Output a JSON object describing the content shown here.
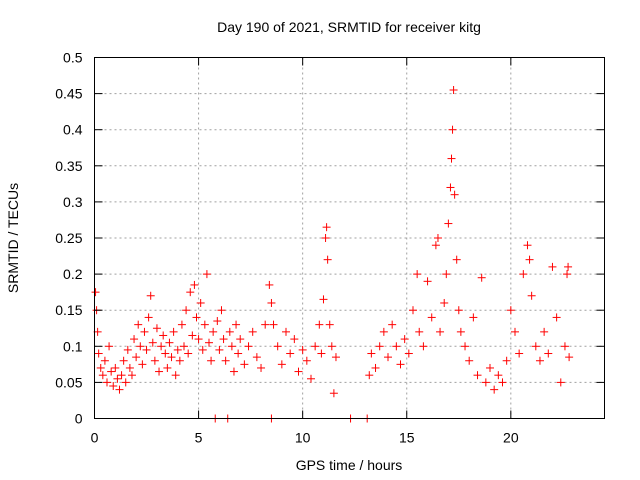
{
  "chart_data": {
    "type": "scatter",
    "title": "Day 190 of 2021, SRMTID for receiver kitg",
    "xlabel": "GPS time / hours",
    "ylabel": "SRMTID / TECUs",
    "xlim": [
      0,
      24.5
    ],
    "ylim": [
      0,
      0.5
    ],
    "x_ticks": [
      0,
      5,
      10,
      15,
      20
    ],
    "x_tick_labels": [
      "0",
      "5",
      "10",
      "15",
      "20"
    ],
    "y_ticks": [
      0,
      0.05,
      0.1,
      0.15,
      0.2,
      0.25,
      0.3,
      0.35,
      0.4,
      0.45,
      0.5
    ],
    "y_tick_labels": [
      "0",
      "0.05",
      "0.1",
      "0.15",
      "0.2",
      "0.25",
      "0.3",
      "0.35",
      "0.4",
      "0.45",
      "0.5"
    ],
    "grid": true,
    "marker": "+",
    "color": "#ff0000",
    "series": [
      {
        "name": "SRMTID",
        "points": [
          [
            0.05,
            0.175
          ],
          [
            0.1,
            0.15
          ],
          [
            0.15,
            0.12
          ],
          [
            0.2,
            0.09
          ],
          [
            0.3,
            0.07
          ],
          [
            0.4,
            0.06
          ],
          [
            0.5,
            0.08
          ],
          [
            0.6,
            0.05
          ],
          [
            0.7,
            0.1
          ],
          [
            0.8,
            0.065
          ],
          [
            0.9,
            0.045
          ],
          [
            1.0,
            0.07
          ],
          [
            1.1,
            0.055
          ],
          [
            1.2,
            0.04
          ],
          [
            1.3,
            0.06
          ],
          [
            1.4,
            0.08
          ],
          [
            1.5,
            0.05
          ],
          [
            1.6,
            0.095
          ],
          [
            1.7,
            0.07
          ],
          [
            1.8,
            0.06
          ],
          [
            1.9,
            0.11
          ],
          [
            2.0,
            0.085
          ],
          [
            2.1,
            0.13
          ],
          [
            2.2,
            0.1
          ],
          [
            2.3,
            0.075
          ],
          [
            2.4,
            0.12
          ],
          [
            2.5,
            0.095
          ],
          [
            2.6,
            0.14
          ],
          [
            2.7,
            0.17
          ],
          [
            2.8,
            0.105
          ],
          [
            2.9,
            0.08
          ],
          [
            3.0,
            0.125
          ],
          [
            3.1,
            0.065
          ],
          [
            3.2,
            0.1
          ],
          [
            3.3,
            0.115
          ],
          [
            3.4,
            0.09
          ],
          [
            3.5,
            0.07
          ],
          [
            3.6,
            0.105
          ],
          [
            3.7,
            0.085
          ],
          [
            3.8,
            0.12
          ],
          [
            3.9,
            0.06
          ],
          [
            4.0,
            0.095
          ],
          [
            4.1,
            0.08
          ],
          [
            4.2,
            0.13
          ],
          [
            4.3,
            0.1
          ],
          [
            4.4,
            0.15
          ],
          [
            4.5,
            0.09
          ],
          [
            4.6,
            0.175
          ],
          [
            4.7,
            0.115
          ],
          [
            4.8,
            0.185
          ],
          [
            4.9,
            0.14
          ],
          [
            5.0,
            0.11
          ],
          [
            5.1,
            0.16
          ],
          [
            5.2,
            0.095
          ],
          [
            5.3,
            0.13
          ],
          [
            5.4,
            0.2
          ],
          [
            5.5,
            0.105
          ],
          [
            5.6,
            0.08
          ],
          [
            5.7,
            0.12
          ],
          [
            5.8,
            0.0
          ],
          [
            5.9,
            0.135
          ],
          [
            6.0,
            0.095
          ],
          [
            6.1,
            0.15
          ],
          [
            6.2,
            0.11
          ],
          [
            6.3,
            0.08
          ],
          [
            6.4,
            0.0
          ],
          [
            6.5,
            0.12
          ],
          [
            6.6,
            0.1
          ],
          [
            6.7,
            0.065
          ],
          [
            6.8,
            0.13
          ],
          [
            6.9,
            0.09
          ],
          [
            7.0,
            0.11
          ],
          [
            7.2,
            0.075
          ],
          [
            7.4,
            0.1
          ],
          [
            7.6,
            0.12
          ],
          [
            7.8,
            0.085
          ],
          [
            8.0,
            0.07
          ],
          [
            8.2,
            0.13
          ],
          [
            8.4,
            0.185
          ],
          [
            8.5,
            0.16
          ],
          [
            8.5,
            0.0
          ],
          [
            8.6,
            0.13
          ],
          [
            8.8,
            0.1
          ],
          [
            9.0,
            0.075
          ],
          [
            9.2,
            0.12
          ],
          [
            9.4,
            0.09
          ],
          [
            9.6,
            0.11
          ],
          [
            9.8,
            0.065
          ],
          [
            10.0,
            0.095
          ],
          [
            10.2,
            0.08
          ],
          [
            10.4,
            0.055
          ],
          [
            10.6,
            0.1
          ],
          [
            10.8,
            0.13
          ],
          [
            10.9,
            0.09
          ],
          [
            11.0,
            0.165
          ],
          [
            11.1,
            0.25
          ],
          [
            11.15,
            0.265
          ],
          [
            11.2,
            0.22
          ],
          [
            11.3,
            0.13
          ],
          [
            11.4,
            0.1
          ],
          [
            11.5,
            0.035
          ],
          [
            11.6,
            0.085
          ],
          [
            12.3,
            0.0
          ],
          [
            13.1,
            0.0
          ],
          [
            13.2,
            0.06
          ],
          [
            13.3,
            0.09
          ],
          [
            13.5,
            0.07
          ],
          [
            13.7,
            0.1
          ],
          [
            13.9,
            0.12
          ],
          [
            14.1,
            0.085
          ],
          [
            14.3,
            0.13
          ],
          [
            14.5,
            0.1
          ],
          [
            14.7,
            0.075
          ],
          [
            14.9,
            0.11
          ],
          [
            15.1,
            0.09
          ],
          [
            15.3,
            0.15
          ],
          [
            15.5,
            0.2
          ],
          [
            15.6,
            0.12
          ],
          [
            15.8,
            0.1
          ],
          [
            16.0,
            0.19
          ],
          [
            16.2,
            0.14
          ],
          [
            16.4,
            0.24
          ],
          [
            16.5,
            0.25
          ],
          [
            16.6,
            0.12
          ],
          [
            16.8,
            0.16
          ],
          [
            16.9,
            0.2
          ],
          [
            17.0,
            0.27
          ],
          [
            17.1,
            0.32
          ],
          [
            17.15,
            0.36
          ],
          [
            17.2,
            0.4
          ],
          [
            17.25,
            0.455
          ],
          [
            17.3,
            0.31
          ],
          [
            17.4,
            0.22
          ],
          [
            17.5,
            0.15
          ],
          [
            17.6,
            0.12
          ],
          [
            17.8,
            0.1
          ],
          [
            18.0,
            0.08
          ],
          [
            18.2,
            0.14
          ],
          [
            18.4,
            0.06
          ],
          [
            18.6,
            0.195
          ],
          [
            18.8,
            0.05
          ],
          [
            19.0,
            0.07
          ],
          [
            19.2,
            0.04
          ],
          [
            19.4,
            0.06
          ],
          [
            19.6,
            0.05
          ],
          [
            19.8,
            0.08
          ],
          [
            20.0,
            0.15
          ],
          [
            20.2,
            0.12
          ],
          [
            20.4,
            0.09
          ],
          [
            20.6,
            0.2
          ],
          [
            20.8,
            0.24
          ],
          [
            20.9,
            0.22
          ],
          [
            21.0,
            0.17
          ],
          [
            21.2,
            0.1
          ],
          [
            21.4,
            0.08
          ],
          [
            21.6,
            0.12
          ],
          [
            21.8,
            0.09
          ],
          [
            22.0,
            0.21
          ],
          [
            22.2,
            0.14
          ],
          [
            22.4,
            0.05
          ],
          [
            22.6,
            0.1
          ],
          [
            22.7,
            0.2
          ],
          [
            22.75,
            0.21
          ],
          [
            22.8,
            0.085
          ]
        ]
      }
    ]
  }
}
